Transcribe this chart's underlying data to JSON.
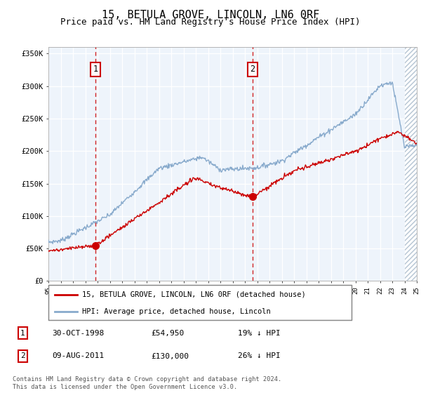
{
  "title": "15, BETULA GROVE, LINCOLN, LN6 0RF",
  "subtitle": "Price paid vs. HM Land Registry's House Price Index (HPI)",
  "ylim": [
    0,
    360000
  ],
  "yticks": [
    0,
    50000,
    100000,
    150000,
    200000,
    250000,
    300000,
    350000
  ],
  "ytick_labels": [
    "£0",
    "£50K",
    "£100K",
    "£150K",
    "£200K",
    "£250K",
    "£300K",
    "£350K"
  ],
  "x_start_year": 1995,
  "x_end_year": 2025,
  "sale1_date": "30-OCT-1998",
  "sale1_price": 54950,
  "sale1_year": 1998.83,
  "sale1_pct": "19%",
  "sale2_date": "09-AUG-2011",
  "sale2_price": 130000,
  "sale2_year": 2011.61,
  "sale2_pct": "26%",
  "line1_label": "15, BETULA GROVE, LINCOLN, LN6 0RF (detached house)",
  "line2_label": "HPI: Average price, detached house, Lincoln",
  "footer": "Contains HM Land Registry data © Crown copyright and database right 2024.\nThis data is licensed under the Open Government Licence v3.0.",
  "red_color": "#cc0000",
  "blue_color": "#88aacc",
  "bg_shade_color": "#ddeeff",
  "grid_color": "#cccccc",
  "title_fontsize": 11,
  "subtitle_fontsize": 9
}
